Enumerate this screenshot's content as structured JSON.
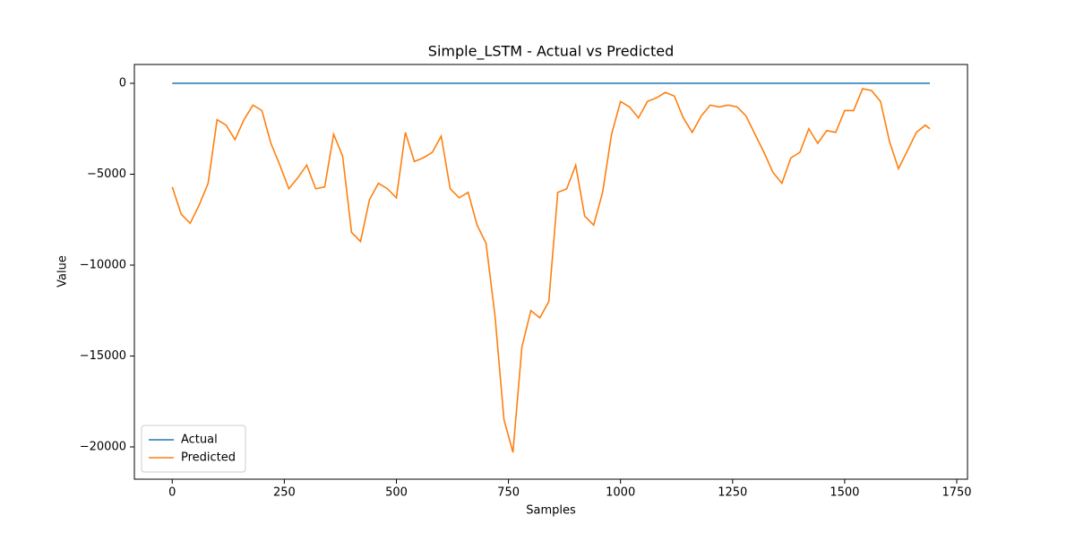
{
  "chart_data": {
    "type": "line",
    "title": "Simple_LSTM - Actual vs Predicted",
    "x_label": "Samples",
    "y_label": "Value",
    "x": [
      0,
      20,
      40,
      60,
      80,
      100,
      120,
      140,
      160,
      180,
      200,
      220,
      240,
      260,
      280,
      300,
      320,
      340,
      360,
      380,
      400,
      420,
      440,
      460,
      480,
      500,
      520,
      540,
      560,
      580,
      600,
      620,
      640,
      660,
      680,
      700,
      720,
      740,
      760,
      780,
      800,
      820,
      840,
      860,
      880,
      900,
      920,
      940,
      960,
      980,
      1000,
      1020,
      1040,
      1060,
      1080,
      1100,
      1120,
      1140,
      1160,
      1180,
      1200,
      1220,
      1240,
      1260,
      1280,
      1300,
      1320,
      1340,
      1360,
      1380,
      1400,
      1420,
      1440,
      1460,
      1480,
      1500,
      1520,
      1540,
      1560,
      1580,
      1600,
      1620,
      1640,
      1660,
      1680,
      1690
    ],
    "series": [
      {
        "name": "Actual",
        "color": "#1f77b4",
        "values": [
          0,
          0,
          0,
          0,
          0,
          0,
          0,
          0,
          0,
          0,
          0,
          0,
          0,
          0,
          0,
          0,
          0,
          0,
          0,
          0,
          0,
          0,
          0,
          0,
          0,
          0,
          0,
          0,
          0,
          0,
          0,
          0,
          0,
          0,
          0,
          0,
          0,
          0,
          0,
          0,
          0,
          0,
          0,
          0,
          0,
          0,
          0,
          0,
          0,
          0,
          0,
          0,
          0,
          0,
          0,
          0,
          0,
          0,
          0,
          0,
          0,
          0,
          0,
          0,
          0,
          0,
          0,
          0,
          0,
          0,
          0,
          0,
          0,
          0,
          0,
          0,
          0,
          0,
          0,
          0,
          0,
          0,
          0,
          0,
          0,
          0
        ]
      },
      {
        "name": "Predicted",
        "color": "#ff7f0e",
        "values": [
          -5700,
          -7200,
          -7700,
          -6700,
          -5500,
          -2000,
          -2300,
          -3100,
          -2000,
          -1200,
          -1500,
          -3300,
          -4500,
          -5800,
          -5200,
          -4500,
          -5800,
          -5700,
          -2800,
          -4000,
          -8200,
          -8700,
          -6400,
          -5500,
          -5800,
          -6300,
          -2700,
          -4300,
          -4100,
          -3800,
          -2900,
          -5800,
          -6300,
          -6000,
          -7800,
          -8800,
          -12800,
          -18500,
          -20300,
          -14500,
          -12500,
          -12900,
          -12000,
          -6000,
          -5800,
          -4500,
          -7300,
          -7800,
          -6000,
          -2800,
          -1000,
          -1300,
          -1900,
          -1000,
          -800,
          -500,
          -700,
          -1900,
          -2700,
          -1800,
          -1200,
          -1300,
          -1200,
          -1300,
          -1800,
          -2800,
          -3800,
          -4900,
          -5500,
          -4100,
          -3800,
          -2500,
          -3300,
          -2600,
          -2700,
          -1500,
          -1500,
          -300,
          -400,
          -1000,
          -3200,
          -4700,
          -3700,
          -2700,
          -2300,
          -2500
        ]
      }
    ],
    "xlim": [
      -84.5,
      1774
    ],
    "ylim": [
      -21775,
      1035
    ],
    "xticks": [
      0,
      250,
      500,
      750,
      1000,
      1250,
      1500,
      1750
    ],
    "yticks": [
      0,
      {
        "value": -5000,
        "label": "−5000"
      },
      {
        "value": -10000,
        "label": "−10000"
      },
      {
        "value": -15000,
        "label": "−15000"
      },
      {
        "value": -20000,
        "label": "−20000"
      }
    ],
    "legend": "lower left"
  }
}
